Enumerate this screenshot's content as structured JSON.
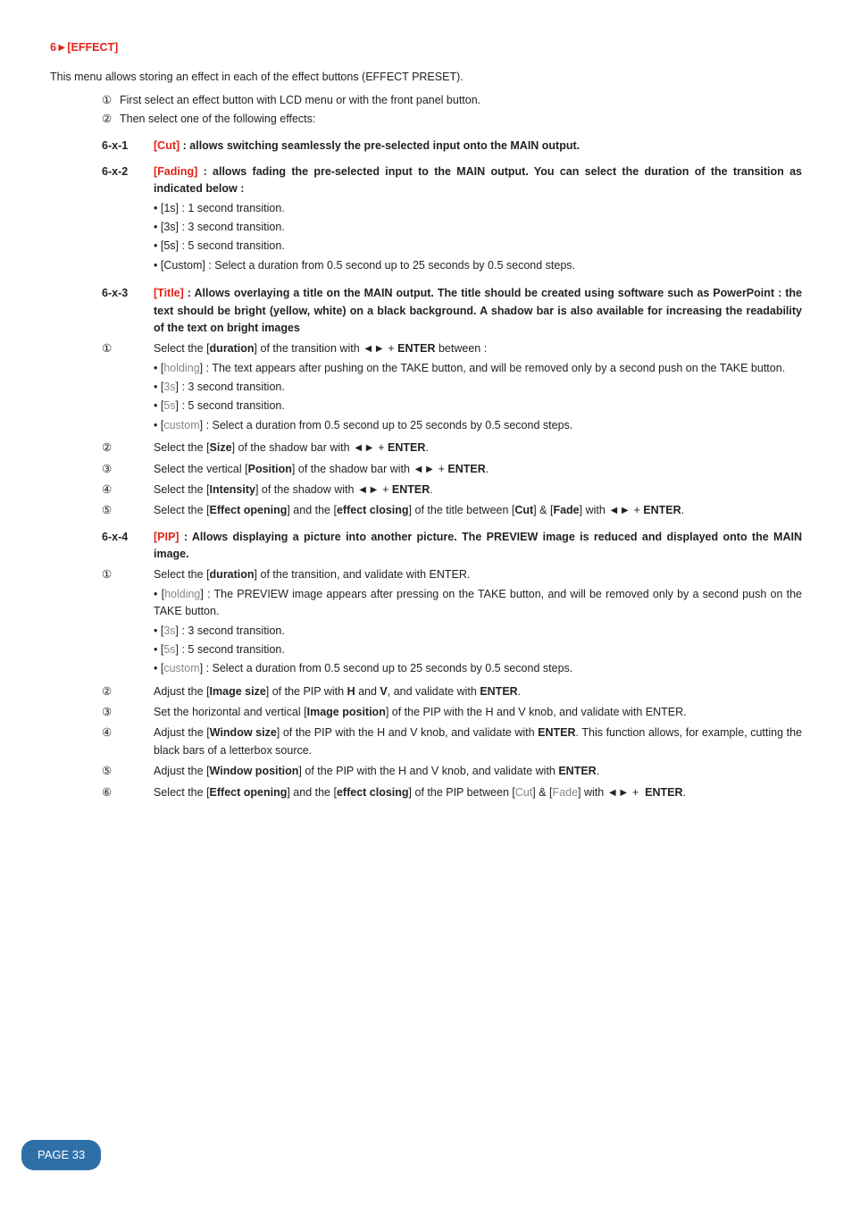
{
  "section_heading": "6►[EFFECT]",
  "intro": "This menu allows storing an effect in each of the effect buttons (EFFECT PRESET).",
  "top_steps": {
    "s1": "First select an effect button with LCD menu or with the front panel button.",
    "s2": "Then select one of the following effects:"
  },
  "cut": {
    "key": "6-x-1",
    "title": "[Cut]",
    "body": " : allows switching seamlessly the pre-selected input onto the MAIN output."
  },
  "fading": {
    "key": "6-x-2",
    "title": "[Fading]",
    "body": " : allows fading the pre-selected input to the MAIN output. You can select the duration of the transition as indicated below :",
    "b1": "• [1s] : 1 second transition.",
    "b2": "• [3s] : 3 second transition.",
    "b3": "• [5s] : 5 second transition.",
    "b4": "• [Custom] : Select a duration from 0.5 second up to 25 seconds by 0.5 second steps."
  },
  "title_sec": {
    "key": "6-x-3",
    "title": "[Title]",
    "body": " : Allows overlaying a title on the MAIN output. The title should be created using software such as PowerPoint : the text should be bright (yellow, white) on a black background. A shadow bar is also available for increasing the readability of the text on bright images",
    "s1_pre": "Select the [",
    "s1_bold": "duration",
    "s1_mid": "] of the transition with ◄► + ",
    "s1_enter": "ENTER",
    "s1_post": " between :",
    "b1_a": "• [",
    "b1_g": "holding",
    "b1_b": "] : The text appears after pushing on the TAKE button, and will be removed only by a second push on the TAKE button.",
    "b2_a": "• [",
    "b2_g": "3s",
    "b2_b": "] : 3 second transition.",
    "b3_a": "• [",
    "b3_g": "5s",
    "b3_b": "] : 5 second transition.",
    "b4_a": "• [",
    "b4_g": "custom",
    "b4_b": "] : Select a duration from 0.5 second up to 25 seconds by 0.5 second steps.",
    "s2_pre": "Select the [",
    "s2_bold": "Size",
    "s2_post": "] of the shadow bar with ◄► + ",
    "s3_pre": "Select the vertical [",
    "s3_bold": "Position",
    "s3_post": "] of the shadow bar with ◄► + ",
    "s4_pre": "Select the [",
    "s4_bold": "Intensity",
    "s4_post": "] of the shadow with ◄► + ",
    "s5_pre": "Select the [",
    "s5_b1": "Effect opening",
    "s5_mid1": "] and the [",
    "s5_b2": "effect closing",
    "s5_mid2": "] of the title between [",
    "s5_b3": "Cut",
    "s5_mid3": "] & [",
    "s5_b4": "Fade",
    "s5_post": "] with ◄► + ",
    "enter": "ENTER",
    "dot": "."
  },
  "pip": {
    "key": "6-x-4",
    "title": "[PIP]",
    "body": " : Allows displaying a picture into another picture. The PREVIEW image is reduced and displayed onto the MAIN image.",
    "s1_pre": "Select the [",
    "s1_bold": "duration",
    "s1_post": "] of the transition, and validate with ENTER.",
    "b1_a": "• [",
    "b1_g": "holding",
    "b1_b": "] : The PREVIEW image appears after pressing on the TAKE button, and will be removed only by a second push on the TAKE button.",
    "b2_a": "• [",
    "b2_g": "3s",
    "b2_b": "] : 3 second transition.",
    "b3_a": "• [",
    "b3_g": "5s",
    "b3_b": "] : 5 second transition.",
    "b4_a": "• [",
    "b4_g": "custom",
    "b4_b": "] : Select a duration from 0.5 second up to 25 seconds by 0.5 second steps.",
    "s2_pre": "Adjust the [",
    "s2_bold": "Image size",
    "s2_mid": "] of the PIP with ",
    "s2_h": "H",
    "s2_and": " and ",
    "s2_v": "V",
    "s2_post": ", and validate with ",
    "s3_pre": "Set the horizontal and vertical [",
    "s3_bold": "Image position",
    "s3_post": "] of the PIP with the H and V knob, and validate with ENTER.",
    "s4_pre": "Adjust the [",
    "s4_bold": "Window size",
    "s4_mid": "] of the PIP with the H and V knob, and validate with ",
    "s4_post": ". This function allows, for example, cutting the black bars of a letterbox source.",
    "s5_pre": "Adjust the [",
    "s5_bold": "Window position",
    "s5_mid": "] of the PIP with the H and V knob, and validate with ",
    "s6_pre": "Select the [",
    "s6_b1": "Effect opening",
    "s6_mid1": "] and the [",
    "s6_b2": "effect closing",
    "s6_mid2": "] of the PIP between [",
    "s6_g1": "Cut",
    "s6_mid3": "] & [",
    "s6_g2": "Fade",
    "s6_post": "] with ◄► + ",
    "enter": "ENTER",
    "dot": "."
  },
  "circled": {
    "c1": "①",
    "c2": "②",
    "c3": "③",
    "c4": "④",
    "c5": "⑤",
    "c6": "⑥"
  },
  "page_label": "PAGE 33"
}
